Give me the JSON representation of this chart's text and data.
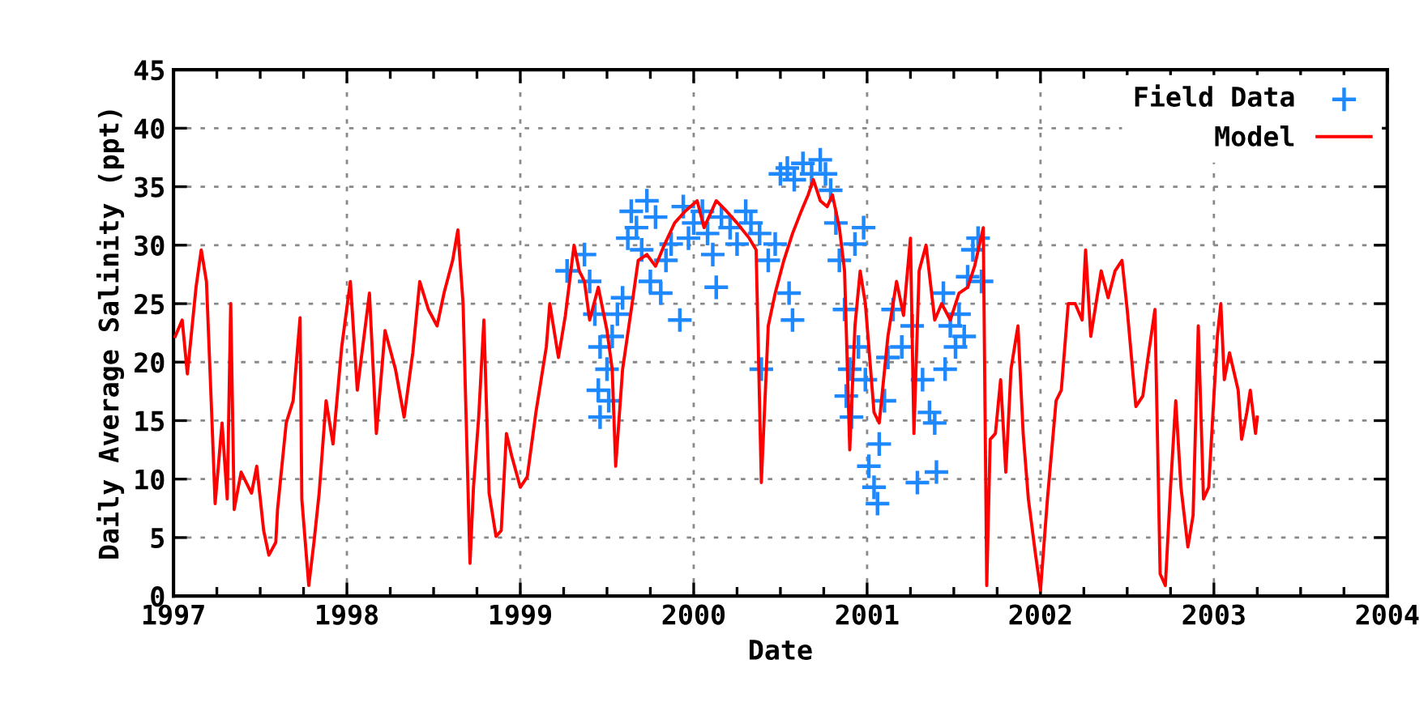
{
  "chart_data": {
    "type": "line",
    "xlabel": "Date",
    "ylabel": "Daily Average Salinity (ppt)",
    "xlim": [
      1997,
      2004
    ],
    "xticks": [
      1997,
      1998,
      1999,
      2000,
      2001,
      2002,
      2003,
      2004
    ],
    "ylim": [
      0,
      45
    ],
    "yticks": [
      0,
      5,
      10,
      15,
      20,
      25,
      30,
      35,
      40,
      45
    ],
    "grid": true,
    "legend": "top right",
    "series": [
      {
        "name": "Field Data",
        "type": "scatter",
        "marker": "cross",
        "color": "#1e88ff",
        "x": [
          1999.27,
          1999.37,
          1999.4,
          1999.43,
          1999.45,
          1999.46,
          1999.46,
          1999.5,
          1999.51,
          1999.53,
          1999.56,
          1999.59,
          1999.62,
          1999.64,
          1999.67,
          1999.7,
          1999.73,
          1999.75,
          1999.78,
          1999.81,
          1999.84,
          1999.87,
          1999.92,
          1999.94,
          1999.97,
          2000.0,
          2000.05,
          2000.08,
          2000.11,
          2000.13,
          2000.16,
          2000.21,
          2000.25,
          2000.3,
          2000.33,
          2000.38,
          2000.39,
          2000.43,
          2000.47,
          2000.5,
          2000.54,
          2000.55,
          2000.57,
          2000.58,
          2000.63,
          2000.68,
          2000.73,
          2000.76,
          2000.79,
          2000.82,
          2000.84,
          2000.87,
          2000.88,
          2000.9,
          2000.91,
          2000.93,
          2000.95,
          2000.98,
          2000.99,
          2001.01,
          2001.04,
          2001.06,
          2001.07,
          2001.1,
          2001.12,
          2001.15,
          2001.2,
          2001.26,
          2001.29,
          2001.32,
          2001.36,
          2001.39,
          2001.4,
          2001.44,
          2001.45,
          2001.48,
          2001.51,
          2001.53,
          2001.56,
          2001.58,
          2001.61,
          2001.64,
          2001.66
        ],
        "values": [
          27.8,
          29.2,
          26.9,
          24.1,
          17.6,
          21.3,
          15.3,
          19.4,
          16.7,
          22.2,
          24.1,
          25.5,
          30.6,
          32.9,
          31.5,
          29.6,
          33.8,
          26.9,
          32.4,
          25.9,
          28.7,
          30.1,
          23.6,
          33.3,
          30.6,
          31.9,
          32.9,
          31,
          29.2,
          26.4,
          32.4,
          31.5,
          30.1,
          32.9,
          31.9,
          31,
          19.4,
          28.7,
          30.1,
          36.1,
          36.6,
          25.9,
          23.6,
          35.6,
          37,
          36.1,
          37.3,
          36.1,
          34.7,
          31.9,
          28.7,
          24.5,
          17.1,
          19.4,
          15.3,
          30.1,
          21.3,
          31.5,
          18.5,
          11.1,
          9.3,
          7.9,
          13,
          16.7,
          20.4,
          24.5,
          21.3,
          23.1,
          9.7,
          18.5,
          15.7,
          14.8,
          10.6,
          25.9,
          19.4,
          23.1,
          21.3,
          24.1,
          22.2,
          27.3,
          29.6,
          30.6,
          26.9
        ]
      },
      {
        "name": "Model",
        "marker": "none",
        "line_style": "solid",
        "color": "#ff0000",
        "x": [
          1997.01,
          1997.05,
          1997.08,
          1997.13,
          1997.16,
          1997.19,
          1997.22,
          1997.24,
          1997.28,
          1997.31,
          1997.33,
          1997.35,
          1997.39,
          1997.45,
          1997.48,
          1997.52,
          1997.55,
          1997.59,
          1997.6,
          1997.65,
          1997.69,
          1997.73,
          1997.74,
          1997.78,
          1997.81,
          1997.84,
          1997.88,
          1997.92,
          1997.97,
          1998.02,
          1998.06,
          1998.13,
          1998.17,
          1998.22,
          1998.28,
          1998.33,
          1998.38,
          1998.42,
          1998.47,
          1998.52,
          1998.56,
          1998.61,
          1998.64,
          1998.67,
          1998.71,
          1998.73,
          1998.76,
          1998.79,
          1998.82,
          1998.86,
          1998.89,
          1998.92,
          1998.95,
          1999.0,
          1999.04,
          1999.09,
          1999.15,
          1999.17,
          1999.22,
          1999.26,
          1999.31,
          1999.34,
          1999.37,
          1999.4,
          1999.45,
          1999.5,
          1999.53,
          1999.55,
          1999.59,
          1999.64,
          1999.68,
          1999.73,
          1999.78,
          1999.83,
          1999.89,
          1999.95,
          2000.02,
          2000.06,
          2000.13,
          2000.19,
          2000.25,
          2000.32,
          2000.36,
          2000.39,
          2000.43,
          2000.47,
          2000.52,
          2000.57,
          2000.62,
          2000.66,
          2000.69,
          2000.73,
          2000.77,
          2000.8,
          2000.84,
          2000.87,
          2000.9,
          2000.93,
          2000.96,
          2000.99,
          2001.04,
          2001.07,
          2001.12,
          2001.17,
          2001.21,
          2001.25,
          2001.27,
          2001.3,
          2001.34,
          2001.39,
          2001.43,
          2001.48,
          2001.53,
          2001.58,
          2001.62,
          2001.67,
          2001.69,
          2001.71,
          2001.74,
          2001.77,
          2001.8,
          2001.83,
          2001.87,
          2001.9,
          2001.93,
          2001.97,
          2002.0,
          2002.04,
          2002.09,
          2002.12,
          2002.16,
          2002.2,
          2002.24,
          2002.26,
          2002.29,
          2002.35,
          2002.39,
          2002.43,
          2002.47,
          2002.5,
          2002.55,
          2002.59,
          2002.62,
          2002.66,
          2002.69,
          2002.72,
          2002.75,
          2002.78,
          2002.81,
          2002.85,
          2002.88,
          2002.91,
          2002.94,
          2002.97,
          2003.02,
          2003.04,
          2003.06,
          2003.09,
          2003.14,
          2003.16,
          2003.19,
          2003.21,
          2003.24,
          2003.25
        ],
        "values": [
          22.2,
          23.6,
          19,
          26.4,
          29.6,
          26.9,
          15.7,
          7.9,
          14.8,
          8.3,
          25,
          7.4,
          10.6,
          8.8,
          11.1,
          5.6,
          3.5,
          4.6,
          7.4,
          14.8,
          16.7,
          23.8,
          8.3,
          0.9,
          4.6,
          8.8,
          16.7,
          13,
          21.3,
          26.9,
          17.6,
          25.9,
          13.9,
          22.7,
          19.4,
          15.3,
          20.8,
          26.9,
          24.5,
          23.1,
          25.9,
          28.7,
          31.3,
          25,
          2.8,
          9.3,
          15.3,
          23.6,
          8.8,
          5.1,
          5.6,
          13.9,
          12,
          9.3,
          10.2,
          15.7,
          21.3,
          25,
          20.4,
          24,
          30,
          27.8,
          26.9,
          23.6,
          26.4,
          22.7,
          19.4,
          11.1,
          19.4,
          24.5,
          28.7,
          29.2,
          28.2,
          30,
          31.9,
          32.9,
          33.8,
          31.5,
          33.8,
          32.9,
          31.9,
          30.6,
          29.6,
          9.7,
          23.1,
          25.9,
          28.7,
          31,
          32.9,
          34.3,
          35.6,
          33.8,
          33.3,
          34.3,
          31.5,
          27.8,
          12.5,
          23.1,
          27.8,
          25,
          15.7,
          14.8,
          22.2,
          26.9,
          24,
          30.6,
          13.9,
          27.8,
          30,
          23.6,
          25,
          23.6,
          25.9,
          26.4,
          28.2,
          31.5,
          0.9,
          13.4,
          13.9,
          18.5,
          10.6,
          19.4,
          23.1,
          13.9,
          8.3,
          3.7,
          0.5,
          8.3,
          16.7,
          17.6,
          25,
          25,
          23.6,
          29.6,
          22.2,
          27.8,
          25.5,
          27.8,
          28.7,
          24.5,
          16.2,
          17.1,
          20.4,
          24.5,
          1.9,
          0.9,
          9.3,
          16.7,
          9.3,
          4.2,
          6.9,
          23.1,
          8.3,
          9.3,
          22.2,
          25,
          18.5,
          20.8,
          17.6,
          13.4,
          15.7,
          17.6,
          13.9,
          15.3
        ]
      }
    ]
  }
}
